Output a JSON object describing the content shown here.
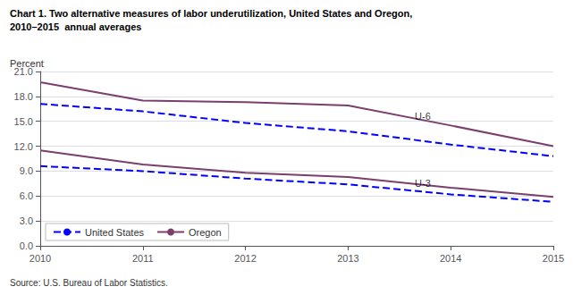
{
  "chart_data": {
    "type": "line",
    "title": "Chart 1. Two alternative measures of labor underutilization, United States and Oregon,",
    "subtitle": "2010–2015  annual averages",
    "ylabel": "Percent",
    "source": "Source: U.S. Bureau of Labor Statistics.",
    "x": [
      2010,
      2011,
      2012,
      2013,
      2014,
      2015
    ],
    "xlim": [
      2010,
      2015
    ],
    "xticks": [
      2010,
      2011,
      2012,
      2013,
      2014,
      2015
    ],
    "ylim": [
      0,
      21
    ],
    "yticks": [
      {
        "value": 0,
        "label": "0.0"
      },
      {
        "value": 3,
        "label": "3.0"
      },
      {
        "value": 6,
        "label": "6.0"
      },
      {
        "value": 9,
        "label": "9.0"
      },
      {
        "value": 12,
        "label": "12.0"
      },
      {
        "value": 15,
        "label": "15.0"
      },
      {
        "value": 18,
        "label": "18.0"
      },
      {
        "value": 21,
        "label": "21.0"
      }
    ],
    "grid": true,
    "legend": "lower left",
    "series": [
      {
        "name": "Oregon",
        "color": "#7B3F6E",
        "line_style": "solid",
        "values": [
          19.7,
          17.5,
          17.3,
          16.9,
          14.5,
          12.0
        ]
      },
      {
        "name": "Oregon",
        "color": "#7B3F6E",
        "line_style": "solid",
        "values": [
          11.5,
          9.8,
          8.8,
          8.3,
          7.0,
          5.9
        ]
      },
      {
        "name": "United States",
        "color": "#0000FF",
        "line_style": "dashed",
        "values": [
          17.1,
          16.2,
          14.8,
          13.8,
          12.2,
          10.8
        ]
      },
      {
        "name": "United States",
        "color": "#0000FF",
        "line_style": "dashed",
        "values": [
          9.6,
          9.0,
          8.1,
          7.4,
          6.2,
          5.3
        ]
      }
    ],
    "annotations": [
      {
        "text": "U-6",
        "x": 2013.65,
        "y": 15.6
      },
      {
        "text": "U-3",
        "x": 2013.65,
        "y": 7.55
      }
    ]
  }
}
